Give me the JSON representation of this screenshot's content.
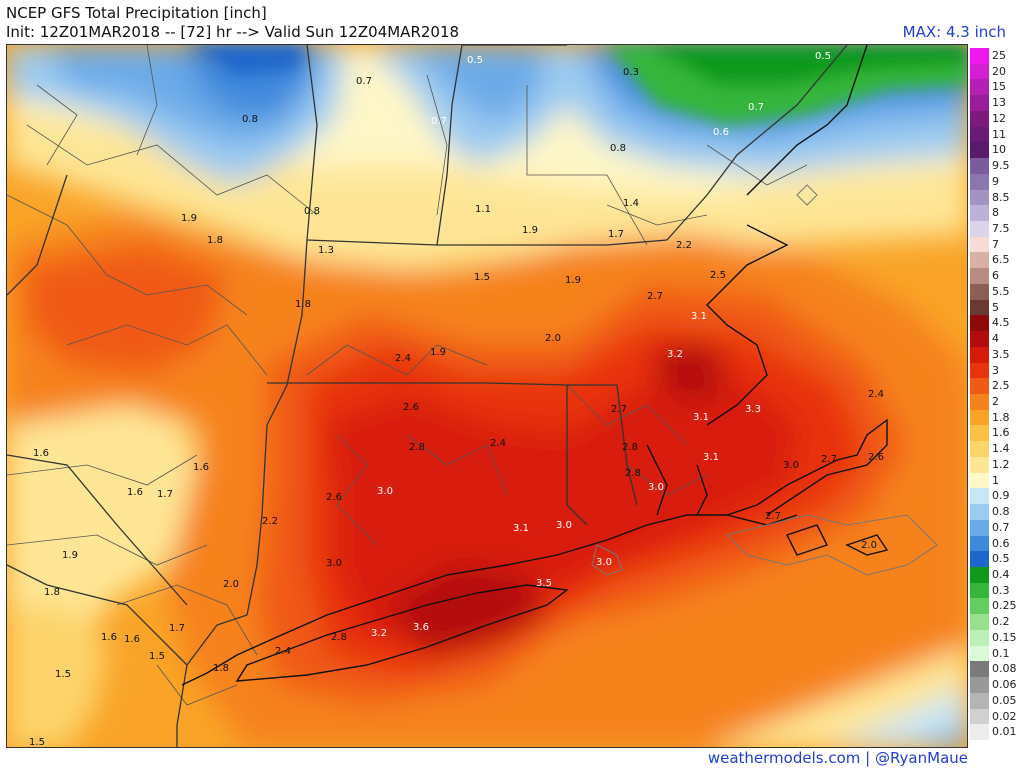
{
  "header": {
    "title": "NCEP GFS Total Precipitation [inch]",
    "subtitle": "Init: 12Z01MAR2018 -- [72] hr --> Valid Sun 12Z04MAR2018",
    "max": "MAX: 4.3 inch"
  },
  "footer": {
    "credit": "weathermodels.com | @RyanMaue"
  },
  "legend": [
    {
      "label": "25",
      "color": "#f018f0"
    },
    {
      "label": "20",
      "color": "#d31ed3"
    },
    {
      "label": "15",
      "color": "#b51fb5"
    },
    {
      "label": "13",
      "color": "#9a1e9a"
    },
    {
      "label": "12",
      "color": "#7d1a7d"
    },
    {
      "label": "11",
      "color": "#691b75"
    },
    {
      "label": "10",
      "color": "#5a1a6a"
    },
    {
      "label": "9.5",
      "color": "#7a5c9c"
    },
    {
      "label": "9",
      "color": "#8c76ae"
    },
    {
      "label": "8.5",
      "color": "#a393c2"
    },
    {
      "label": "8",
      "color": "#bdb1d6"
    },
    {
      "label": "7.5",
      "color": "#dcd4ea"
    },
    {
      "label": "7",
      "color": "#f6dcd4"
    },
    {
      "label": "6.5",
      "color": "#d8b0a4"
    },
    {
      "label": "6",
      "color": "#b88c80"
    },
    {
      "label": "5.5",
      "color": "#8a6056"
    },
    {
      "label": "5",
      "color": "#6a3a32"
    },
    {
      "label": "4.5",
      "color": "#8e0a0a"
    },
    {
      "label": "4",
      "color": "#b40c0c"
    },
    {
      "label": "3.5",
      "color": "#d81a0a"
    },
    {
      "label": "3",
      "color": "#e8330e"
    },
    {
      "label": "2.5",
      "color": "#f05a16"
    },
    {
      "label": "2",
      "color": "#f6821e"
    },
    {
      "label": "1.8",
      "color": "#f9a428"
    },
    {
      "label": "1.6",
      "color": "#fbc044"
    },
    {
      "label": "1.4",
      "color": "#fdd46a"
    },
    {
      "label": "1.2",
      "color": "#fee696"
    },
    {
      "label": "1",
      "color": "#fff7c8"
    },
    {
      "label": "0.9",
      "color": "#c9e6f7"
    },
    {
      "label": "0.8",
      "color": "#9ccbf1"
    },
    {
      "label": "0.7",
      "color": "#6aaae8"
    },
    {
      "label": "0.6",
      "color": "#3f88dc"
    },
    {
      "label": "0.5",
      "color": "#1f66cc"
    },
    {
      "label": "0.4",
      "color": "#0f9a1e"
    },
    {
      "label": "0.3",
      "color": "#35b63a"
    },
    {
      "label": "0.25",
      "color": "#65cc60"
    },
    {
      "label": "0.2",
      "color": "#96e08e"
    },
    {
      "label": "0.15",
      "color": "#bdf0b6"
    },
    {
      "label": "0.1",
      "color": "#dcf9d8"
    },
    {
      "label": "0.08",
      "color": "#7a7a7a"
    },
    {
      "label": "0.06",
      "color": "#999999"
    },
    {
      "label": "0.05",
      "color": "#b4b4b4"
    },
    {
      "label": "0.02",
      "color": "#d0d0d0"
    },
    {
      "label": "0.01",
      "color": "#ececec"
    }
  ],
  "map_labels": [
    {
      "text": "0.5",
      "color": "#ffffff"
    },
    {
      "text": "0.7",
      "color": "#111111"
    },
    {
      "text": "0.3",
      "color": "#111111"
    },
    {
      "text": "0.5",
      "color": "#ffffff"
    },
    {
      "text": "0.7",
      "color": "#ffffff"
    },
    {
      "text": "0.8",
      "color": "#111111"
    },
    {
      "text": "0.7",
      "color": "#ffffff"
    },
    {
      "text": "0.6",
      "color": "#ffffff"
    },
    {
      "text": "0.8",
      "color": "#111111"
    },
    {
      "text": "0.8",
      "color": "#111111"
    },
    {
      "text": "1.1",
      "color": "#111111"
    },
    {
      "text": "1.4",
      "color": "#111111"
    },
    {
      "text": "1.9",
      "color": "#111111"
    },
    {
      "text": "1.8",
      "color": "#111111"
    },
    {
      "text": "1.9",
      "color": "#111111"
    },
    {
      "text": "1.7",
      "color": "#111111"
    },
    {
      "text": "2.2",
      "color": "#111111"
    },
    {
      "text": "1.3",
      "color": "#111111"
    },
    {
      "text": "1.5",
      "color": "#111111"
    },
    {
      "text": "1.9",
      "color": "#111111"
    },
    {
      "text": "2.5",
      "color": "#111111"
    },
    {
      "text": "2.7",
      "color": "#111111"
    },
    {
      "text": "1.8",
      "color": "#111111"
    },
    {
      "text": "2.0",
      "color": "#111111"
    },
    {
      "text": "3.1",
      "color": "#ffffff"
    },
    {
      "text": "3.2",
      "color": "#ffffff"
    },
    {
      "text": "2.4",
      "color": "#111111"
    },
    {
      "text": "1.9",
      "color": "#111111"
    },
    {
      "text": "2.4",
      "color": "#111111"
    },
    {
      "text": "2.6",
      "color": "#111111"
    },
    {
      "text": "2.7",
      "color": "#111111"
    },
    {
      "text": "3.1",
      "color": "#ffffff"
    },
    {
      "text": "3.3",
      "color": "#ffffff"
    },
    {
      "text": "2.8",
      "color": "#111111"
    },
    {
      "text": "2.4",
      "color": "#111111"
    },
    {
      "text": "2.8",
      "color": "#111111"
    },
    {
      "text": "3.1",
      "color": "#ffffff"
    },
    {
      "text": "2.6",
      "color": "#111111"
    },
    {
      "text": "2.7",
      "color": "#111111"
    },
    {
      "text": "1.6",
      "color": "#111111"
    },
    {
      "text": "1.6",
      "color": "#111111"
    },
    {
      "text": "3.0",
      "color": "#ffffff"
    },
    {
      "text": "2.8",
      "color": "#111111"
    },
    {
      "text": "3.0",
      "color": "#111111"
    },
    {
      "text": "3.0",
      "color": "#ffffff"
    },
    {
      "text": "1.6",
      "color": "#111111"
    },
    {
      "text": "1.7",
      "color": "#111111"
    },
    {
      "text": "2.6",
      "color": "#111111"
    },
    {
      "text": "3.1",
      "color": "#ffffff"
    },
    {
      "text": "3.0",
      "color": "#ffffff"
    },
    {
      "text": "2.7",
      "color": "#111111"
    },
    {
      "text": "2.2",
      "color": "#111111"
    },
    {
      "text": "3.0",
      "color": "#111111"
    },
    {
      "text": "2.0",
      "color": "#111111"
    },
    {
      "text": "1.9",
      "color": "#111111"
    },
    {
      "text": "3.0",
      "color": "#ffffff"
    },
    {
      "text": "2.0",
      "color": "#111111"
    },
    {
      "text": "3.5",
      "color": "#ffffff"
    },
    {
      "text": "1.8",
      "color": "#111111"
    },
    {
      "text": "1.7",
      "color": "#111111"
    },
    {
      "text": "1.6",
      "color": "#111111"
    },
    {
      "text": "1.6",
      "color": "#111111"
    },
    {
      "text": "2.8",
      "color": "#111111"
    },
    {
      "text": "3.2",
      "color": "#ffffff"
    },
    {
      "text": "3.6",
      "color": "#ffffff"
    },
    {
      "text": "1.5",
      "color": "#111111"
    },
    {
      "text": "1.8",
      "color": "#111111"
    },
    {
      "text": "2.4",
      "color": "#111111"
    },
    {
      "text": "1.5",
      "color": "#111111"
    },
    {
      "text": "1.5",
      "color": "#111111"
    }
  ]
}
